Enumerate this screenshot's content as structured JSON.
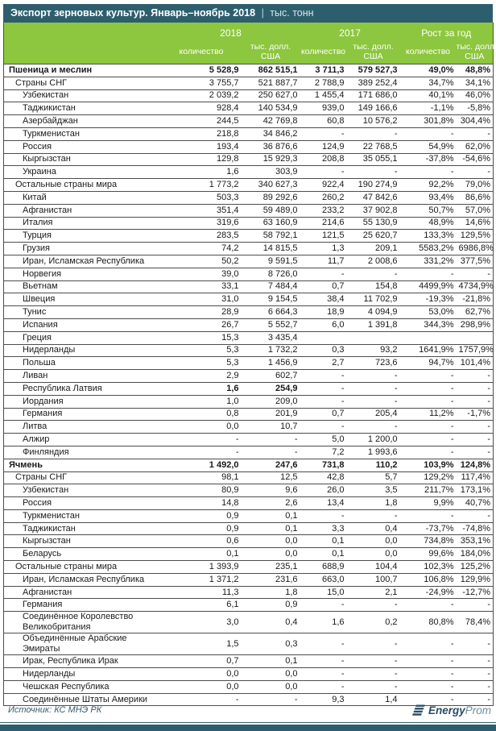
{
  "title": {
    "main": "Экспорт зерновых культур. Январь–ноябрь 2018",
    "sep": "|",
    "unit": "тыс. тонн"
  },
  "header": {
    "groups": [
      "2018",
      "2017",
      "Рост за год"
    ],
    "qty": "количество",
    "usd1": "тыс. долл.",
    "usd2": "США"
  },
  "footer": {
    "source": "Источник: КС МНЭ РК",
    "logo_energy": "Energy",
    "logo_prom": "Prom"
  },
  "colors": {
    "teal": "#2d5e6e",
    "green": "#8dc63f",
    "logo_dark": "#2c4e62",
    "logo_light": "#71909f"
  },
  "chart_data": {
    "type": "table",
    "title": "Экспорт зерновых культур. Январь–ноябрь 2018, тыс. тонн",
    "columns": [
      "",
      "2018 количество",
      "2018 тыс. долл. США",
      "2017 количество",
      "2017 тыс. долл. США",
      "Рост за год количество",
      "Рост за год тыс. долл. США"
    ],
    "rows": [
      {
        "label": "Пшеница и меслин",
        "indent": 0,
        "bold": true,
        "values": [
          "5 528,9",
          "862 515,1",
          "3 711,3",
          "579 527,3",
          "49,0%",
          "48,8%"
        ]
      },
      {
        "label": "Страны СНГ",
        "indent": 1,
        "values": [
          "3 755,7",
          "521 887,7",
          "2 788,9",
          "389 252,4",
          "34,7%",
          "34,1%"
        ]
      },
      {
        "label": "Узбекистан",
        "indent": 2,
        "values": [
          "2 039,2",
          "250 627,0",
          "1 455,4",
          "171 686,0",
          "40,1%",
          "46,0%"
        ]
      },
      {
        "label": "Таджикистан",
        "indent": 2,
        "values": [
          "928,4",
          "140 534,9",
          "939,0",
          "149 166,6",
          "-1,1%",
          "-5,8%"
        ]
      },
      {
        "label": "Азербайджан",
        "indent": 2,
        "values": [
          "244,5",
          "42 769,8",
          "60,8",
          "10 576,2",
          "301,8%",
          "304,4%"
        ]
      },
      {
        "label": "Туркменистан",
        "indent": 2,
        "values": [
          "218,8",
          "34 846,2",
          "-",
          "-",
          "-",
          "-"
        ]
      },
      {
        "label": "Россия",
        "indent": 2,
        "values": [
          "193,4",
          "36 876,6",
          "124,9",
          "22 768,5",
          "54,9%",
          "62,0%"
        ]
      },
      {
        "label": "Кыргызстан",
        "indent": 2,
        "values": [
          "129,8",
          "15 929,3",
          "208,8",
          "35 055,1",
          "-37,8%",
          "-54,6%"
        ]
      },
      {
        "label": "Украина",
        "indent": 2,
        "values": [
          "1,6",
          "303,9",
          "-",
          "-",
          "-",
          "-"
        ]
      },
      {
        "label": "Остальные страны мира",
        "indent": 1,
        "values": [
          "1 773,2",
          "340 627,3",
          "922,4",
          "190 274,9",
          "92,2%",
          "79,0%"
        ]
      },
      {
        "label": "Китай",
        "indent": 2,
        "values": [
          "503,3",
          "89 292,6",
          "260,2",
          "47 842,6",
          "93,4%",
          "86,6%"
        ]
      },
      {
        "label": "Афганистан",
        "indent": 2,
        "values": [
          "351,4",
          "59 489,0",
          "233,2",
          "37 902,8",
          "50,7%",
          "57,0%"
        ]
      },
      {
        "label": "Италия",
        "indent": 2,
        "values": [
          "319,6",
          "63 160,9",
          "214,6",
          "55 130,9",
          "48,9%",
          "14,6%"
        ]
      },
      {
        "label": "Турция",
        "indent": 2,
        "values": [
          "283,5",
          "58 792,1",
          "121,5",
          "25 620,7",
          "133,3%",
          "129,5%"
        ]
      },
      {
        "label": "Грузия",
        "indent": 2,
        "values": [
          "74,2",
          "14 815,5",
          "1,3",
          "209,1",
          "5583,2%",
          "6986,8%"
        ]
      },
      {
        "label": "Иран, Исламская Республика",
        "indent": 2,
        "values": [
          "50,2",
          "9 591,5",
          "11,7",
          "2 008,6",
          "331,2%",
          "377,5%"
        ]
      },
      {
        "label": "Норвегия",
        "indent": 2,
        "values": [
          "39,0",
          "8 726,0",
          "-",
          "-",
          "-",
          "-"
        ]
      },
      {
        "label": "Вьетнам",
        "indent": 2,
        "values": [
          "33,1",
          "7 484,4",
          "0,7",
          "154,8",
          "4499,9%",
          "4734,9%"
        ]
      },
      {
        "label": "Швеция",
        "indent": 2,
        "values": [
          "31,0",
          "9 154,5",
          "38,4",
          "11 702,9",
          "-19,3%",
          "-21,8%"
        ]
      },
      {
        "label": "Тунис",
        "indent": 2,
        "values": [
          "28,9",
          "6 664,3",
          "18,9",
          "4 094,9",
          "53,0%",
          "62,7%"
        ]
      },
      {
        "label": "Испания",
        "indent": 2,
        "values": [
          "26,7",
          "5 552,7",
          "6,0",
          "1 391,8",
          "344,3%",
          "298,9%"
        ]
      },
      {
        "label": "Греция",
        "indent": 2,
        "values": [
          "15,3",
          "3 435,4",
          "",
          "",
          "",
          ""
        ]
      },
      {
        "label": "Нидерланды",
        "indent": 2,
        "values": [
          "5,3",
          "1 732,2",
          "0,3",
          "93,2",
          "1641,9%",
          "1757,9%"
        ]
      },
      {
        "label": "Польша",
        "indent": 2,
        "values": [
          "5,3",
          "1 456,9",
          "2,7",
          "723,6",
          "94,7%",
          "101,4%"
        ]
      },
      {
        "label": "Ливан",
        "indent": 2,
        "values": [
          "2,9",
          "602,7",
          "-",
          "-",
          "-",
          "-"
        ]
      },
      {
        "label": "Республика Латвия",
        "indent": 2,
        "bold_cells": [
          0,
          1
        ],
        "values": [
          "1,6",
          "254,9",
          "-",
          "-",
          "-",
          "-"
        ]
      },
      {
        "label": "Иордания",
        "indent": 2,
        "values": [
          "1,0",
          "209,0",
          "-",
          "-",
          "-",
          "-"
        ]
      },
      {
        "label": "Германия",
        "indent": 2,
        "values": [
          "0,8",
          "201,9",
          "0,7",
          "205,4",
          "11,2%",
          "-1,7%"
        ]
      },
      {
        "label": "Литва",
        "indent": 2,
        "values": [
          "0,0",
          "10,7",
          "-",
          "-",
          "-",
          "-"
        ]
      },
      {
        "label": "Алжир",
        "indent": 2,
        "values": [
          "-",
          "-",
          "5,0",
          "1 200,0",
          "-",
          "-"
        ]
      },
      {
        "label": "Финляндия",
        "indent": 2,
        "values": [
          "-",
          "-",
          "7,2",
          "1 993,6",
          "-",
          "-"
        ]
      },
      {
        "label": "Ячмень",
        "indent": 0,
        "bold": true,
        "values": [
          "1 492,0",
          "247,6",
          "731,8",
          "110,2",
          "103,9%",
          "124,8%"
        ]
      },
      {
        "label": "Страны СНГ",
        "indent": 1,
        "values": [
          "98,1",
          "12,5",
          "42,8",
          "5,7",
          "129,2%",
          "117,4%"
        ]
      },
      {
        "label": "Узбекистан",
        "indent": 2,
        "values": [
          "80,9",
          "9,6",
          "26,0",
          "3,5",
          "211,7%",
          "173,1%"
        ]
      },
      {
        "label": "Россия",
        "indent": 2,
        "values": [
          "14,8",
          "2,6",
          "13,4",
          "1,8",
          "9,9%",
          "40,7%"
        ]
      },
      {
        "label": "Туркменистан",
        "indent": 2,
        "values": [
          "0,9",
          "0,1",
          "-",
          "-",
          "-",
          "-"
        ]
      },
      {
        "label": "Таджикистан",
        "indent": 2,
        "values": [
          "0,9",
          "0,1",
          "3,3",
          "0,4",
          "-73,7%",
          "-74,8%"
        ]
      },
      {
        "label": "Кыргызстан",
        "indent": 2,
        "values": [
          "0,6",
          "0,0",
          "0,1",
          "0,0",
          "734,8%",
          "353,1%"
        ]
      },
      {
        "label": "Беларусь",
        "indent": 2,
        "values": [
          "0,1",
          "0,0",
          "0,1",
          "0,0",
          "99,6%",
          "184,0%"
        ]
      },
      {
        "label": "Остальные страны мира",
        "indent": 1,
        "values": [
          "1 393,9",
          "235,1",
          "688,9",
          "104,4",
          "102,3%",
          "125,2%"
        ]
      },
      {
        "label": "Иран, Исламская Республика",
        "indent": 2,
        "values": [
          "1 371,2",
          "231,6",
          "663,0",
          "100,7",
          "106,8%",
          "129,9%"
        ]
      },
      {
        "label": "Афганистан",
        "indent": 2,
        "values": [
          "11,3",
          "1,8",
          "15,0",
          "2,1",
          "-24,9%",
          "-12,7%"
        ]
      },
      {
        "label": "Германия",
        "indent": 2,
        "values": [
          "6,1",
          "0,9",
          "-",
          "-",
          "-",
          "-"
        ]
      },
      {
        "label": "Соединённое Королевство Великобритания",
        "indent": 2,
        "values": [
          "3,0",
          "0,4",
          "1,6",
          "0,2",
          "80,8%",
          "78,4%"
        ]
      },
      {
        "label": "Объединённые Арабские Эмираты",
        "indent": 2,
        "values": [
          "1,5",
          "0,3",
          "-",
          "-",
          "-",
          "-"
        ]
      },
      {
        "label": "Ирак, Республика Ирак",
        "indent": 2,
        "values": [
          "0,7",
          "0,1",
          "-",
          "-",
          "-",
          "-"
        ]
      },
      {
        "label": "Нидерланды",
        "indent": 2,
        "values": [
          "0,0",
          "0,0",
          "-",
          "-",
          "-",
          "-"
        ]
      },
      {
        "label": "Чешская Республика",
        "indent": 2,
        "values": [
          "0,0",
          "0,0",
          "-",
          "-",
          "-",
          "-"
        ]
      },
      {
        "label": "Соединённые Штаты Америки",
        "indent": 2,
        "values": [
          "-",
          "-",
          "9,3",
          "1,4",
          "-",
          "-"
        ]
      }
    ]
  }
}
